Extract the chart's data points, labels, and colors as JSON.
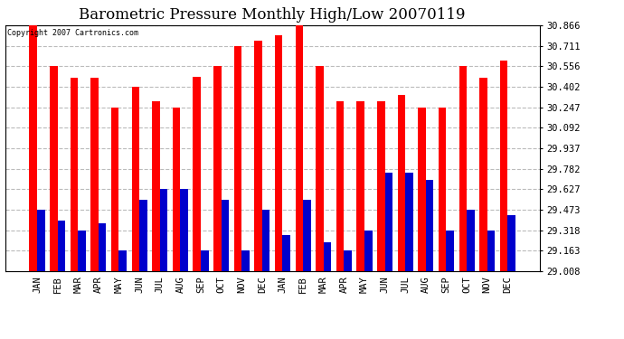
{
  "title": "Barometric Pressure Monthly High/Low 20070119",
  "copyright": "Copyright 2007 Cartronics.com",
  "months": [
    "JAN",
    "FEB",
    "MAR",
    "APR",
    "MAY",
    "JUN",
    "JUL",
    "AUG",
    "SEP",
    "OCT",
    "NOV",
    "DEC",
    "JAN",
    "FEB",
    "MAR",
    "APR",
    "MAY",
    "JUN",
    "JUL",
    "AUG",
    "SEP",
    "OCT",
    "NOV",
    "DEC"
  ],
  "highs": [
    30.866,
    30.556,
    30.47,
    30.47,
    30.247,
    30.402,
    30.295,
    30.247,
    30.48,
    30.556,
    30.711,
    30.75,
    30.795,
    30.866,
    30.556,
    30.295,
    30.295,
    30.295,
    30.34,
    30.247,
    30.247,
    30.556,
    30.47,
    30.6
  ],
  "lows": [
    29.473,
    29.39,
    29.318,
    29.37,
    29.163,
    29.55,
    29.627,
    29.627,
    29.163,
    29.55,
    29.163,
    29.473,
    29.28,
    29.55,
    29.23,
    29.163,
    29.318,
    29.75,
    29.75,
    29.695,
    29.318,
    29.473,
    29.318,
    29.43
  ],
  "high_color": "#FF0000",
  "low_color": "#0000CC",
  "bg_color": "#FFFFFF",
  "grid_color": "#BBBBBB",
  "ylim_min": 29.008,
  "ylim_max": 30.866,
  "yticks": [
    29.008,
    29.163,
    29.318,
    29.473,
    29.627,
    29.782,
    29.937,
    30.092,
    30.247,
    30.402,
    30.556,
    30.711,
    30.866
  ],
  "title_fontsize": 12,
  "tick_fontsize": 7.5,
  "bar_width": 0.38
}
